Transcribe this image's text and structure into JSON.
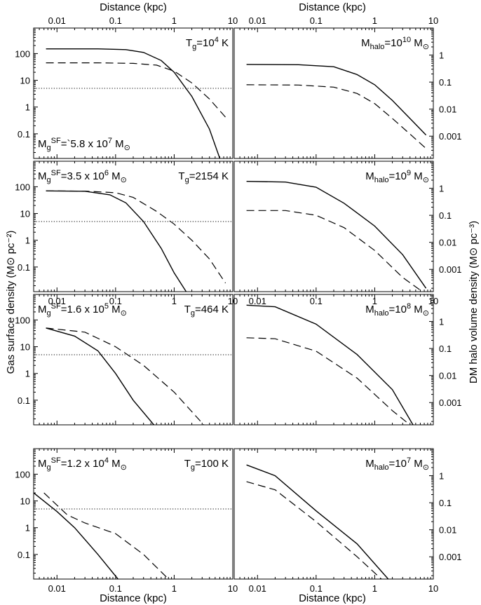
{
  "figure": {
    "top_xlabel_left": "Distance (kpc)",
    "top_xlabel_right": "Distance (kpc)",
    "bottom_xlabel_left": "Distance (kpc)",
    "bottom_xlabel_right": "Distance (kpc)",
    "left_ylabel": "Gas surface density (M⊙ pc⁻²)",
    "right_ylabel": "DM halo volume density (M⊙ pc⁻³)"
  },
  "chart_data": [
    {
      "type": "line",
      "panel": "left-row-1",
      "xscale": "log",
      "yscale": "log",
      "xlim": [
        0.004,
        10
      ],
      "ylim": [
        0.012,
        900
      ],
      "x_ticks": [
        "0.01",
        "0.1",
        "1",
        "10"
      ],
      "y_ticks": [
        "0.1",
        "1",
        "10",
        "100"
      ],
      "annotations": [
        {
          "parts": [
            [
              "T",
              ""
            ],
            [
              "g",
              "sub"
            ],
            [
              "=10",
              ""
            ],
            [
              "4",
              "sup"
            ],
            [
              " K",
              ""
            ]
          ],
          "pos": "top-right"
        },
        {
          "parts": [
            [
              "M",
              ""
            ],
            [
              "g",
              "sub"
            ],
            [
              "SF",
              "sup"
            ],
            [
              "=`5.8 x 10",
              ""
            ],
            [
              "7",
              "sup"
            ],
            [
              " M",
              ""
            ],
            [
              "⊙",
              "sub"
            ]
          ],
          "pos": "bottom-left"
        }
      ],
      "series": [
        {
          "style": "solid",
          "x": [
            0.0065,
            0.05,
            0.15,
            0.3,
            0.6,
            1,
            2,
            4,
            6
          ],
          "y": [
            150,
            150,
            140,
            110,
            55,
            20,
            2.5,
            0.15,
            0.012
          ]
        },
        {
          "style": "dashed",
          "x": [
            0.0065,
            0.05,
            0.2,
            0.5,
            1,
            2,
            4,
            7.5
          ],
          "y": [
            45,
            45,
            43,
            37,
            22,
            8,
            2,
            0.42
          ]
        },
        {
          "style": "dotted",
          "x": [
            0.004,
            10
          ],
          "y": [
            5,
            5
          ]
        }
      ]
    },
    {
      "type": "line",
      "panel": "right-row-1",
      "xscale": "log",
      "yscale": "log",
      "xlim": [
        0.004,
        10
      ],
      "ylim": [
        0.00015,
        10
      ],
      "x_ticks": [
        "0.01",
        "0.1",
        "1",
        "10"
      ],
      "y_ticks": [
        "0.001",
        "0.01",
        "0.1",
        "1"
      ],
      "annotations": [
        {
          "parts": [
            [
              "M",
              ""
            ],
            [
              "halo",
              "sub"
            ],
            [
              "=10",
              ""
            ],
            [
              "10",
              "sup"
            ],
            [
              " M",
              ""
            ],
            [
              "⊙",
              "sub"
            ]
          ],
          "pos": "top-right"
        }
      ],
      "series": [
        {
          "style": "solid",
          "x": [
            0.0065,
            0.05,
            0.2,
            0.5,
            1,
            2,
            4,
            7.5
          ],
          "y": [
            0.45,
            0.44,
            0.37,
            0.19,
            0.08,
            0.021,
            0.0045,
            0.0011
          ]
        },
        {
          "style": "dashed",
          "x": [
            0.0065,
            0.05,
            0.2,
            0.5,
            1,
            2,
            4,
            7.5
          ],
          "y": [
            0.08,
            0.078,
            0.065,
            0.038,
            0.016,
            0.0045,
            0.0012,
            0.00035
          ]
        }
      ]
    },
    {
      "type": "line",
      "panel": "left-row-2",
      "xscale": "log",
      "yscale": "log",
      "xlim": [
        0.004,
        10
      ],
      "ylim": [
        0.012,
        900
      ],
      "x_ticks": [
        "0.01",
        "0.1",
        "1",
        "10"
      ],
      "y_ticks": [
        "0.1",
        "1",
        "10",
        "100"
      ],
      "annotations": [
        {
          "parts": [
            [
              "M",
              ""
            ],
            [
              "g",
              "sub"
            ],
            [
              "SF",
              "sup"
            ],
            [
              "=3.5 x 10",
              ""
            ],
            [
              "6",
              "sup"
            ],
            [
              " M",
              ""
            ],
            [
              "⊙",
              "sub"
            ]
          ],
          "pos": "top-left"
        },
        {
          "parts": [
            [
              "T",
              ""
            ],
            [
              "g",
              "sub"
            ],
            [
              "=2154 K",
              ""
            ]
          ],
          "pos": "top-right"
        }
      ],
      "series": [
        {
          "style": "solid",
          "x": [
            0.0065,
            0.03,
            0.08,
            0.15,
            0.3,
            0.6,
            1,
            1.6
          ],
          "y": [
            70,
            68,
            50,
            25,
            5,
            0.5,
            0.06,
            0.012
          ]
        },
        {
          "style": "dashed",
          "x": [
            0.0065,
            0.03,
            0.1,
            0.2,
            0.5,
            1,
            2,
            4,
            7.5
          ],
          "y": [
            70,
            69,
            60,
            40,
            12,
            4,
            1,
            0.2,
            0.025
          ]
        },
        {
          "style": "dotted",
          "x": [
            0.004,
            10
          ],
          "y": [
            5,
            5
          ]
        }
      ]
    },
    {
      "type": "line",
      "panel": "right-row-2",
      "xscale": "log",
      "yscale": "log",
      "xlim": [
        0.004,
        10
      ],
      "ylim": [
        0.00015,
        10
      ],
      "x_ticks": [
        "0.01",
        "0.1",
        "1",
        "10"
      ],
      "y_ticks": [
        "0.001",
        "0.01",
        "0.1",
        "1"
      ],
      "annotations": [
        {
          "parts": [
            [
              "M",
              ""
            ],
            [
              "halo",
              "sub"
            ],
            [
              "=10",
              ""
            ],
            [
              "9",
              "sup"
            ],
            [
              " M",
              ""
            ],
            [
              "⊙",
              "sub"
            ]
          ],
          "pos": "top-right"
        }
      ],
      "series": [
        {
          "style": "solid",
          "x": [
            0.0065,
            0.03,
            0.1,
            0.3,
            1,
            3,
            7.5
          ],
          "y": [
            1.8,
            1.7,
            1.1,
            0.28,
            0.04,
            0.0035,
            0.0002
          ]
        },
        {
          "style": "dashed",
          "x": [
            0.0065,
            0.03,
            0.1,
            0.3,
            1,
            3,
            7.5
          ],
          "y": [
            0.15,
            0.15,
            0.1,
            0.035,
            0.005,
            0.0005,
            0.00012
          ]
        }
      ]
    },
    {
      "type": "line",
      "panel": "left-row-3",
      "xscale": "log",
      "yscale": "log",
      "xlim": [
        0.004,
        10
      ],
      "ylim": [
        0.012,
        900
      ],
      "x_ticks": [
        "0.01",
        "0.1",
        "1",
        "10"
      ],
      "y_ticks": [
        "0.1",
        "1",
        "10",
        "100"
      ],
      "annotations": [
        {
          "parts": [
            [
              "M",
              ""
            ],
            [
              "g",
              "sub"
            ],
            [
              "SF",
              "sup"
            ],
            [
              "=1.6 x 10",
              ""
            ],
            [
              "5",
              "sup"
            ],
            [
              " M",
              ""
            ],
            [
              "⊙",
              "sub"
            ]
          ],
          "pos": "top-left"
        },
        {
          "parts": [
            [
              "T",
              ""
            ],
            [
              "g",
              "sub"
            ],
            [
              "=464 K",
              ""
            ]
          ],
          "pos": "top-right"
        }
      ],
      "series": [
        {
          "style": "solid",
          "x": [
            0.0065,
            0.02,
            0.05,
            0.1,
            0.2,
            0.45
          ],
          "y": [
            50,
            25,
            7,
            1,
            0.1,
            0.012
          ]
        },
        {
          "style": "dashed",
          "x": [
            0.0065,
            0.03,
            0.1,
            0.3,
            1,
            3.2
          ],
          "y": [
            50,
            35,
            10,
            2,
            0.2,
            0.012
          ]
        },
        {
          "style": "dotted",
          "x": [
            0.004,
            10
          ],
          "y": [
            5,
            5
          ]
        }
      ]
    },
    {
      "type": "line",
      "panel": "right-row-3",
      "xscale": "log",
      "yscale": "log",
      "xlim": [
        0.004,
        10
      ],
      "ylim": [
        0.00015,
        10
      ],
      "x_ticks": [
        "0.01",
        "0.1",
        "1",
        "10"
      ],
      "y_ticks": [
        "0.001",
        "0.01",
        "0.1",
        "1"
      ],
      "annotations": [
        {
          "parts": [
            [
              "M",
              ""
            ],
            [
              "halo",
              "sub"
            ],
            [
              "=10",
              ""
            ],
            [
              "8",
              "sup"
            ],
            [
              " M",
              ""
            ],
            [
              "⊙",
              "sub"
            ]
          ],
          "pos": "top-right"
        }
      ],
      "series": [
        {
          "style": "solid",
          "x": [
            0.0065,
            0.02,
            0.1,
            0.5,
            2,
            4.5
          ],
          "y": [
            4,
            3.5,
            0.8,
            0.06,
            0.003,
            0.00015
          ]
        },
        {
          "style": "dashed",
          "x": [
            0.0065,
            0.02,
            0.1,
            0.5,
            2,
            4
          ],
          "y": [
            0.25,
            0.23,
            0.08,
            0.008,
            0.0005,
            0.00015
          ]
        }
      ]
    },
    {
      "type": "line",
      "panel": "left-row-4",
      "xscale": "log",
      "yscale": "log",
      "xlim": [
        0.004,
        10
      ],
      "ylim": [
        0.012,
        900
      ],
      "x_ticks": [
        "0.01",
        "0.1",
        "1",
        "10"
      ],
      "y_ticks": [
        "0.1",
        "1",
        "10",
        "100"
      ],
      "annotations": [
        {
          "parts": [
            [
              "M",
              ""
            ],
            [
              "g",
              "sub"
            ],
            [
              "SF",
              "sup"
            ],
            [
              "=1.2 x 10",
              ""
            ],
            [
              "4",
              "sup"
            ],
            [
              " M",
              ""
            ],
            [
              "⊙",
              "sub"
            ]
          ],
          "pos": "top-left"
        },
        {
          "parts": [
            [
              "T",
              ""
            ],
            [
              "g",
              "sub"
            ],
            [
              "=100 K",
              ""
            ]
          ],
          "pos": "top-right"
        }
      ],
      "series": [
        {
          "style": "solid",
          "x": [
            0.004,
            0.01,
            0.02,
            0.05,
            0.11
          ],
          "y": [
            20,
            4,
            1,
            0.1,
            0.012
          ]
        },
        {
          "style": "dashed",
          "x": [
            0.006,
            0.015,
            0.03,
            0.1,
            0.3,
            0.8
          ],
          "y": [
            20,
            3,
            1.5,
            0.6,
            0.1,
            0.012
          ]
        },
        {
          "style": "dotted",
          "x": [
            0.004,
            10
          ],
          "y": [
            5,
            5
          ]
        }
      ]
    },
    {
      "type": "line",
      "panel": "right-row-4",
      "xscale": "log",
      "yscale": "log",
      "xlim": [
        0.004,
        10
      ],
      "ylim": [
        0.00015,
        10
      ],
      "x_ticks": [
        "0.01",
        "0.1",
        "1",
        "10"
      ],
      "y_ticks": [
        "0.001",
        "0.01",
        "0.1",
        "1"
      ],
      "annotations": [
        {
          "parts": [
            [
              "M",
              ""
            ],
            [
              "halo",
              "sub"
            ],
            [
              "=10",
              ""
            ],
            [
              "7",
              "sup"
            ],
            [
              " M",
              ""
            ],
            [
              "⊙",
              "sub"
            ]
          ],
          "pos": "top-right"
        }
      ],
      "series": [
        {
          "style": "solid",
          "x": [
            0.0065,
            0.02,
            0.1,
            0.5,
            1.7
          ],
          "y": [
            2.5,
            1,
            0.05,
            0.003,
            0.00015
          ]
        },
        {
          "style": "dashed",
          "x": [
            0.0065,
            0.02,
            0.1,
            0.5,
            1.3
          ],
          "y": [
            0.6,
            0.3,
            0.02,
            0.001,
            0.00015
          ]
        }
      ]
    }
  ]
}
